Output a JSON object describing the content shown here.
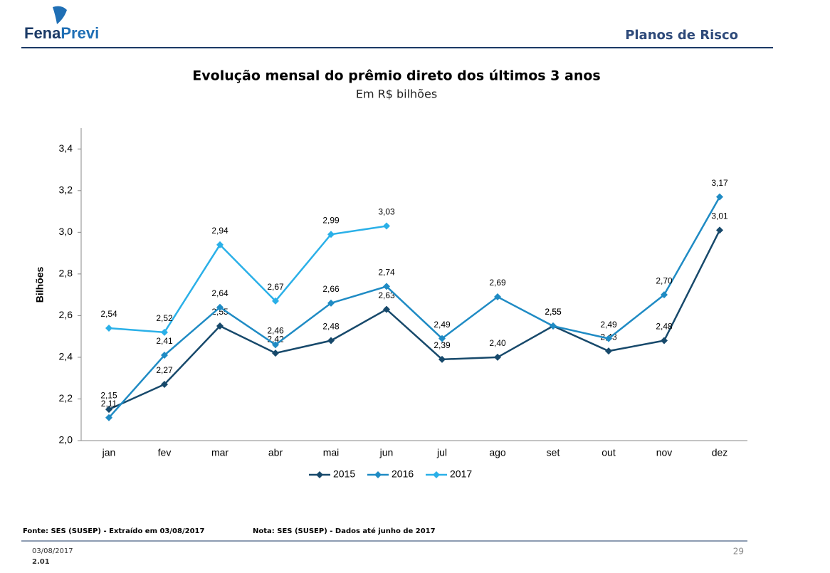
{
  "header": {
    "logo": [
      "Fena",
      "Previ"
    ],
    "section": "Planos de Risco"
  },
  "chart_data": {
    "type": "line",
    "title": "Evolução mensal do prêmio direto dos últimos 3 anos",
    "subtitle": "Em R$ bilhões",
    "y_label": "Bilhões",
    "categories": [
      "jan",
      "fev",
      "mar",
      "abr",
      "mai",
      "jun",
      "jul",
      "ago",
      "set",
      "out",
      "nov",
      "dez"
    ],
    "ylim": [
      2.0,
      3.5
    ],
    "yticks": [
      {
        "value": 2.0,
        "label": "2,0"
      },
      {
        "value": 2.2,
        "label": "2,2"
      },
      {
        "value": 2.4,
        "label": "2,4"
      },
      {
        "value": 2.6,
        "label": "2,6"
      },
      {
        "value": 2.8,
        "label": "2,8"
      },
      {
        "value": 3.0,
        "label": "3,0"
      },
      {
        "value": 3.2,
        "label": "3,2"
      },
      {
        "value": 3.4,
        "label": "3,4"
      }
    ],
    "legend": "bottom",
    "series": [
      {
        "name": "2015",
        "color": "#17496b",
        "values": [
          2.15,
          2.27,
          2.55,
          2.42,
          2.48,
          2.63,
          2.39,
          2.4,
          2.55,
          2.43,
          2.48,
          3.01
        ],
        "value_labels": [
          "2,15",
          "2,27",
          "2,55",
          "2,42",
          "2,48",
          "2,63",
          "2,39",
          "2,40",
          "2,55",
          "2,43",
          "2,48",
          "3,01"
        ]
      },
      {
        "name": "2016",
        "color": "#1f8bc4",
        "values": [
          2.11,
          2.41,
          2.64,
          2.46,
          2.66,
          2.74,
          2.49,
          2.69,
          2.55,
          2.49,
          2.7,
          3.17
        ],
        "value_labels": [
          "2,11",
          "2,41",
          "2,64",
          "2,46",
          "2,66",
          "2,74",
          "2,49",
          "2,69",
          "2,55",
          "2,49",
          "2,70",
          "3,17"
        ]
      },
      {
        "name": "2017",
        "color": "#2ab0e8",
        "values": [
          2.54,
          2.52,
          2.94,
          2.67,
          2.99,
          3.03,
          null,
          null,
          null,
          null,
          null,
          null
        ],
        "value_labels": [
          "2,54",
          "2,52",
          "2,94",
          "2,67",
          "2,99",
          "3,03",
          null,
          null,
          null,
          null,
          null,
          null
        ]
      }
    ]
  },
  "footer": {
    "source": "Fonte: SES (SUSEP) - Extraído em 03/08/2017",
    "note": "Nota: SES (SUSEP) - Dados até junho de 2017",
    "date": "03/08/2017",
    "version": "2.01",
    "page": "29"
  }
}
